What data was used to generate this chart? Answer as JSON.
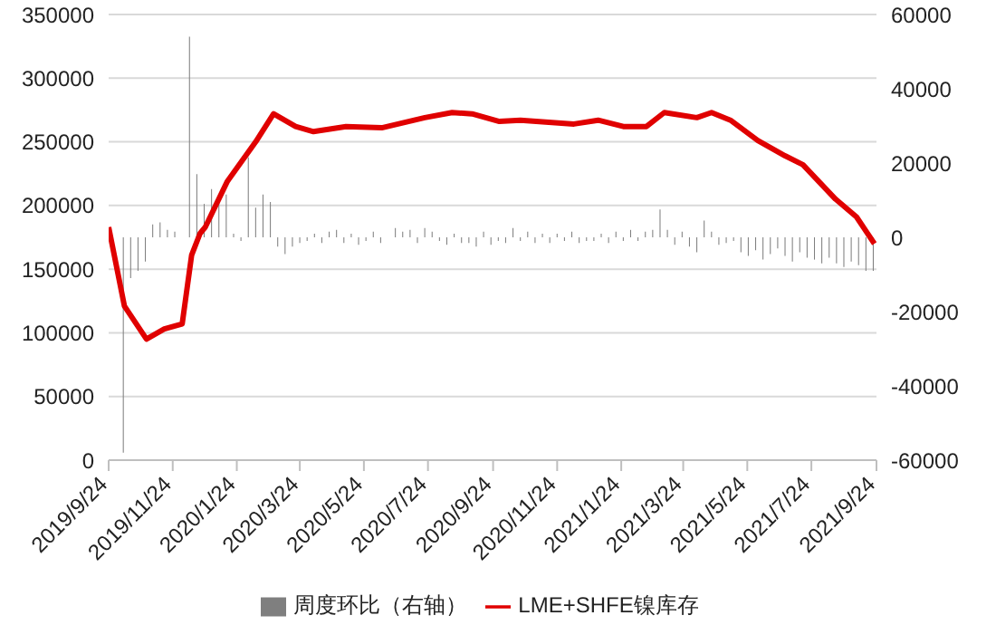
{
  "chart_data": {
    "type": "line",
    "xlim": [
      "2019-09-24",
      "2021-09-24"
    ],
    "xticks": [
      {
        "value": "2019-09-24",
        "label": "2019/9/24"
      },
      {
        "value": "2019-11-24",
        "label": "2019/11/24"
      },
      {
        "value": "2020-01-24",
        "label": "2020/1/24"
      },
      {
        "value": "2020-03-24",
        "label": "2020/3/24"
      },
      {
        "value": "2020-05-24",
        "label": "2020/5/24"
      },
      {
        "value": "2020-07-24",
        "label": "2020/7/24"
      },
      {
        "value": "2020-09-24",
        "label": "2020/9/24"
      },
      {
        "value": "2020-11-24",
        "label": "2020/11/24"
      },
      {
        "value": "2021-01-24",
        "label": "2021/1/24"
      },
      {
        "value": "2021-03-24",
        "label": "2021/3/24"
      },
      {
        "value": "2021-05-24",
        "label": "2021/5/24"
      },
      {
        "value": "2021-07-24",
        "label": "2021/7/24"
      },
      {
        "value": "2021-09-24",
        "label": "2021/9/24"
      }
    ],
    "ylim": [
      0,
      350000
    ],
    "yticks": [
      0,
      50000,
      100000,
      150000,
      200000,
      250000,
      300000,
      350000
    ],
    "y2lim": [
      -60000,
      60000
    ],
    "y2ticks": [
      -60000,
      -40000,
      -20000,
      0,
      20000,
      40000,
      60000
    ],
    "grid": "y",
    "legend": "bottom",
    "series": [
      {
        "name": "周度环比（右轴）",
        "type": "bar",
        "axis": "y2",
        "color": "#7f7f7f",
        "x": [
          "2019-10-08",
          "2019-10-15",
          "2019-10-22",
          "2019-10-29",
          "2019-11-05",
          "2019-11-12",
          "2019-11-19",
          "2019-11-26",
          "2019-12-03",
          "2019-12-10",
          "2019-12-17",
          "2019-12-24",
          "2019-12-31",
          "2020-01-07",
          "2020-01-14",
          "2020-01-21",
          "2020-01-28",
          "2020-02-04",
          "2020-02-11",
          "2020-02-18",
          "2020-02-25",
          "2020-03-03",
          "2020-03-10",
          "2020-03-17",
          "2020-03-24",
          "2020-03-31",
          "2020-04-07",
          "2020-04-14",
          "2020-04-21",
          "2020-04-28",
          "2020-05-05",
          "2020-05-12",
          "2020-05-19",
          "2020-05-26",
          "2020-06-02",
          "2020-06-09",
          "2020-06-16",
          "2020-06-23",
          "2020-06-30",
          "2020-07-07",
          "2020-07-14",
          "2020-07-21",
          "2020-07-28",
          "2020-08-04",
          "2020-08-11",
          "2020-08-18",
          "2020-08-25",
          "2020-09-01",
          "2020-09-08",
          "2020-09-15",
          "2020-09-22",
          "2020-09-29",
          "2020-10-06",
          "2020-10-13",
          "2020-10-20",
          "2020-10-27",
          "2020-11-03",
          "2020-11-10",
          "2020-11-17",
          "2020-11-24",
          "2020-12-01",
          "2020-12-08",
          "2020-12-15",
          "2020-12-22",
          "2020-12-29",
          "2021-01-05",
          "2021-01-12",
          "2021-01-19",
          "2021-01-26",
          "2021-02-02",
          "2021-02-09",
          "2021-02-16",
          "2021-02-23",
          "2021-03-02",
          "2021-03-09",
          "2021-03-16",
          "2021-03-23",
          "2021-03-30",
          "2021-04-06",
          "2021-04-13",
          "2021-04-20",
          "2021-04-27",
          "2021-05-04",
          "2021-05-11",
          "2021-05-18",
          "2021-05-25",
          "2021-06-01",
          "2021-06-08",
          "2021-06-15",
          "2021-06-22",
          "2021-06-29",
          "2021-07-06",
          "2021-07-13",
          "2021-07-20",
          "2021-07-27",
          "2021-08-03",
          "2021-08-10",
          "2021-08-17",
          "2021-08-24",
          "2021-08-31",
          "2021-09-07",
          "2021-09-14",
          "2021-09-21"
        ],
        "values": [
          -58000,
          -11000,
          -9000,
          -6500,
          3500,
          4000,
          2000,
          1500,
          null,
          54000,
          17000,
          9000,
          13000,
          9500,
          11500,
          1000,
          -1000,
          21500,
          8000,
          11500,
          9500,
          -2500,
          -4500,
          -2500,
          -1500,
          -1000,
          1000,
          -1500,
          1500,
          2000,
          -1500,
          1000,
          -2000,
          -1000,
          1500,
          -1500,
          null,
          2500,
          1500,
          2000,
          -1500,
          2500,
          1500,
          -1000,
          -2000,
          1000,
          -1500,
          -1500,
          -2500,
          1500,
          -2000,
          -1000,
          -1500,
          2500,
          -1000,
          1500,
          -1500,
          1000,
          -1500,
          1000,
          -1000,
          1500,
          -1500,
          -1000,
          -1000,
          1000,
          -1500,
          1500,
          -1000,
          2000,
          -1000,
          1500,
          2000,
          7500,
          2000,
          -2000,
          1500,
          -2500,
          -4000,
          4500,
          1500,
          -2000,
          -1500,
          -1000,
          -4000,
          -5000,
          -3500,
          -6000,
          -4500,
          -3000,
          -5000,
          -6500,
          -4000,
          -5500,
          -6000,
          -7000,
          -5500,
          -7000,
          -8000,
          -6500,
          -7500,
          -9000,
          -9000
        ]
      },
      {
        "name": "LME+SHFE镍库存",
        "color": "#e00000",
        "x": [
          "2019-09-24",
          "2019-10-09",
          "2019-10-30",
          "2019-11-16",
          "2019-12-03",
          "2019-12-12",
          "2019-12-20",
          "2019-12-25",
          "2020-01-15",
          "2020-02-11",
          "2020-02-28",
          "2020-03-20",
          "2020-04-06",
          "2020-05-07",
          "2020-06-10",
          "2020-07-21",
          "2020-08-16",
          "2020-09-04",
          "2020-09-30",
          "2020-10-20",
          "2020-12-10",
          "2021-01-02",
          "2021-01-26",
          "2021-02-17",
          "2021-03-06",
          "2021-04-06",
          "2021-04-20",
          "2021-05-08",
          "2021-06-03",
          "2021-06-29",
          "2021-07-16",
          "2021-08-16",
          "2021-09-05",
          "2021-09-22"
        ],
        "values": [
          183000,
          121000,
          95000,
          103000,
          107000,
          161000,
          178000,
          183000,
          219000,
          250000,
          272000,
          262000,
          258000,
          262000,
          261000,
          269000,
          273000,
          272000,
          266000,
          267000,
          264000,
          267000,
          262000,
          262000,
          273000,
          269000,
          273000,
          267000,
          251000,
          239000,
          232000,
          205000,
          191000,
          170000
        ]
      }
    ]
  }
}
